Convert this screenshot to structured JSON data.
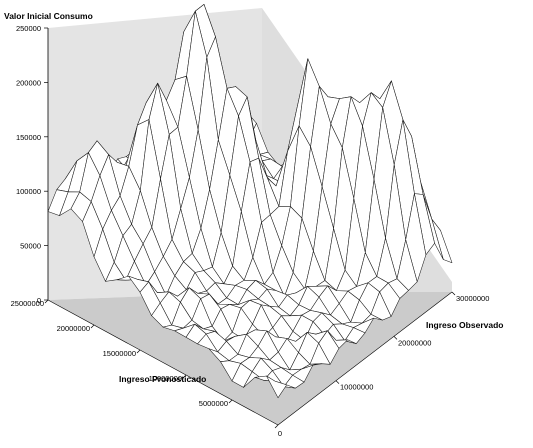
{
  "chart_data": {
    "type": "surface",
    "title": "",
    "zlabel": "Valor Inicial Consumo",
    "xlabel": "Ingreso Pronosticado",
    "ylabel": "Ingreso Observado",
    "zlim": [
      0,
      250000
    ],
    "xlim": [
      0,
      25000000
    ],
    "ylim": [
      0,
      30000000
    ],
    "z_ticks": [
      "0",
      "50000",
      "100000",
      "150000",
      "200000",
      "250000"
    ],
    "x_ticks": [
      "0",
      "5000000",
      "10000000",
      "15000000",
      "20000000",
      "25000000"
    ],
    "y_ticks": [
      "10000000",
      "20000000",
      "30000000"
    ],
    "grid_size": [
      21,
      21
    ],
    "surface_features": [
      {
        "x": 22000000,
        "y": 4000000,
        "z": 100000
      },
      {
        "x": 19000000,
        "y": 9000000,
        "z": 165000
      },
      {
        "x": 14000000,
        "y": 16000000,
        "z": 160000
      },
      {
        "x": 17500000,
        "y": 14000000,
        "z": 235000
      },
      {
        "x": 10000000,
        "y": 21000000,
        "z": 185000
      },
      {
        "x": 6500000,
        "y": 22500000,
        "z": 160000
      },
      {
        "x": 4000000,
        "y": 25000000,
        "z": 140000
      },
      {
        "x": 2500000,
        "y": 26500000,
        "z": 110000
      }
    ],
    "floor_level": 25000,
    "colors": {
      "back_wall": "#e4e4e4",
      "side_wall": "#dedede",
      "floor": "#cbcbcb",
      "mesh": "#1a1a1a",
      "surface_fill": "#ffffff"
    }
  }
}
